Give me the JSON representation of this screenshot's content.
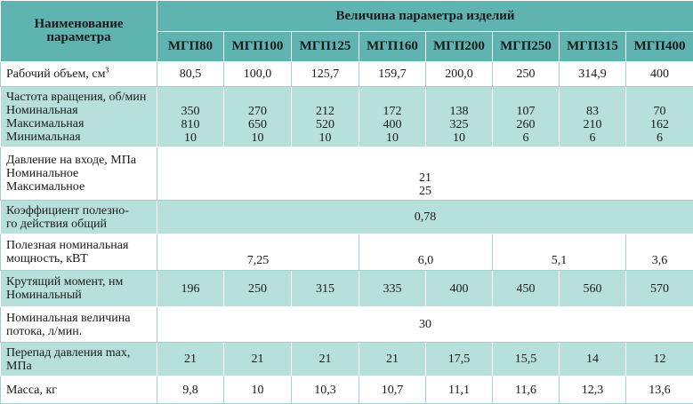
{
  "header": {
    "param_title": [
      "Наименование",
      "параметра"
    ],
    "value_title": "Величина параметра изделий",
    "models": [
      "МГП80",
      "МГП100",
      "МГП125",
      "МГП160",
      "МГП200",
      "МГП250",
      "МГП315",
      "МГП400"
    ]
  },
  "rows": [
    {
      "label": [
        "Рабочий объем, см"
      ],
      "label_sup": "3",
      "cells": [
        [
          "80,5"
        ],
        [
          "100,0"
        ],
        [
          "125,7"
        ],
        [
          "159,7"
        ],
        [
          "200,0"
        ],
        [
          "250"
        ],
        [
          "314,9"
        ],
        [
          "400"
        ]
      ]
    },
    {
      "label": [
        "Частота вращения, об/мин",
        "Номинальная",
        "Максимальная",
        "Минимальная"
      ],
      "cells": [
        [
          "350",
          "810",
          "10"
        ],
        [
          "270",
          "650",
          "10"
        ],
        [
          "212",
          "520",
          "10"
        ],
        [
          "172",
          "400",
          "10"
        ],
        [
          "138",
          "325",
          "10"
        ],
        [
          "107",
          "260",
          "6"
        ],
        [
          "83",
          "210",
          "6"
        ],
        [
          "70",
          "162",
          "6"
        ]
      ]
    },
    {
      "label": [
        "Давление на входе, МПа",
        "Номинальное",
        "Максимальное"
      ],
      "cells": [
        [
          "21",
          "25"
        ]
      ]
    },
    {
      "label": [
        "Коэффициент полезно-",
        "го действия общий"
      ],
      "cells": [
        [
          "0,78"
        ]
      ]
    },
    {
      "label": [
        "Полезная номинальная",
        "мощность, кВТ"
      ],
      "cells": [
        [
          "7,25"
        ],
        [
          "6,0"
        ],
        [
          "5,1"
        ],
        [
          "3,6"
        ]
      ]
    },
    {
      "label": [
        "Крутящий момент, нм",
        "Номинальный"
      ],
      "cells": [
        [
          "196"
        ],
        [
          "250"
        ],
        [
          "315"
        ],
        [
          "335"
        ],
        [
          "400"
        ],
        [
          "450"
        ],
        [
          "560"
        ],
        [
          "570"
        ]
      ]
    },
    {
      "label": [
        "Номинальная величина",
        "потока, л/мин."
      ],
      "cells": [
        [
          "30"
        ]
      ]
    },
    {
      "label": [
        "Перепад давления max,",
        "МПа"
      ],
      "cells": [
        [
          "21"
        ],
        [
          "21"
        ],
        [
          "21"
        ],
        [
          "21"
        ],
        [
          "17,5"
        ],
        [
          "15,5"
        ],
        [
          "14"
        ],
        [
          "12"
        ]
      ]
    },
    {
      "label": [
        "Масса, кг"
      ],
      "cells": [
        [
          "9,8"
        ],
        [
          "10"
        ],
        [
          "10,3"
        ],
        [
          "10,7"
        ],
        [
          "11,1"
        ],
        [
          "11,6"
        ],
        [
          "12,3"
        ],
        [
          "13,6"
        ]
      ]
    }
  ]
}
